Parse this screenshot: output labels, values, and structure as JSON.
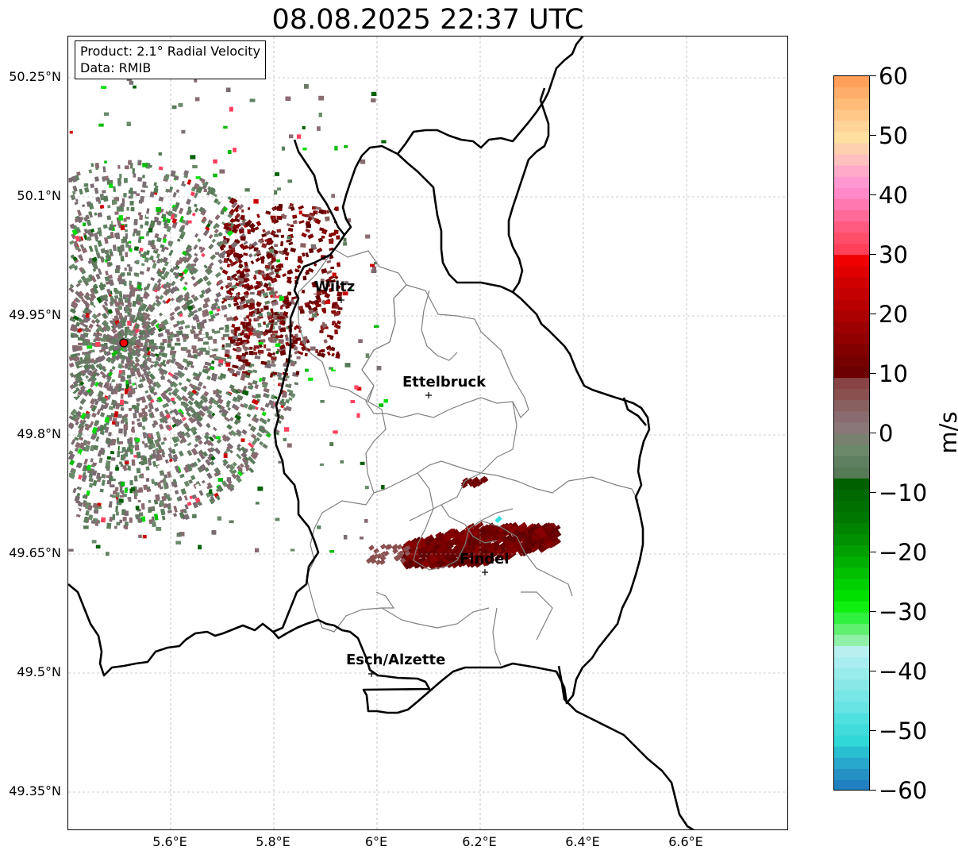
{
  "title": "08.08.2025 22:37 UTC",
  "info_box": {
    "product": "Product: 2.1° Radial Velocity",
    "source": "Data: RMIB"
  },
  "axes": {
    "lat_labels": [
      "50.25°N",
      "50.1°N",
      "49.95°N",
      "49.8°N",
      "49.65°N",
      "49.5°N",
      "49.35°N"
    ],
    "lon_labels": [
      "5.6°E",
      "5.8°E",
      "6°E",
      "6.2°E",
      "6.4°E",
      "6.6°E"
    ]
  },
  "cities": [
    "Wiltz",
    "Ettelbruck",
    "Findel",
    "Esch/Alzette"
  ],
  "colorbar": {
    "unit": "m/s",
    "tick_labels": [
      "60",
      "50",
      "40",
      "30",
      "20",
      "10",
      "0",
      "−10",
      "−20",
      "−30",
      "−40",
      "−50",
      "−60"
    ],
    "range": [
      -60,
      60
    ],
    "colors": {
      "orange": "#ff9f50",
      "peach": "#ffd090",
      "pink": "#ff88c8",
      "salmon": "#ff5060",
      "red": "#ee0000",
      "dark_red": "#6e0000",
      "mauve": "#8a6a70",
      "sage": "#5a7a5a",
      "dark_green": "#006000",
      "green": "#00dd00",
      "light_green": "#88f0a0",
      "light_cyan": "#b0f0f0",
      "cyan": "#30e0e0",
      "blue": "#2080c0"
    }
  },
  "map_style": {
    "border_color": "#000000",
    "canton_color": "#808080",
    "grid_style": "dashed",
    "radar_marker_color": "#ff0000"
  }
}
